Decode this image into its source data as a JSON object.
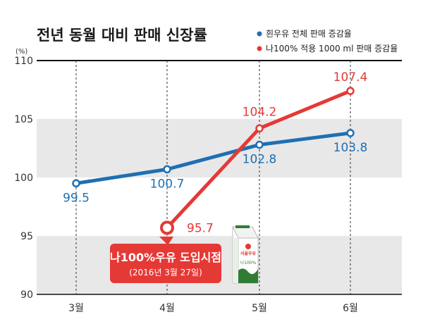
{
  "chart_data": {
    "type": "line",
    "title": "전년 동월 대비 판매 신장률",
    "unit": "(%)",
    "categories": [
      "3월",
      "4월",
      "5월",
      "6월"
    ],
    "ylim": [
      90,
      110
    ],
    "yticks": [
      110,
      105,
      100,
      95,
      90
    ],
    "grid": "horizontal bands and dashed vertical lines",
    "legend": "top-right",
    "series": [
      {
        "name": "흰우유 전체 판매 증감율",
        "color": "#1f6fb2",
        "values": [
          99.5,
          100.7,
          102.8,
          103.8
        ],
        "labels": [
          "99.5",
          "100.7",
          "102.8",
          "103.8"
        ]
      },
      {
        "name": "나100% 적용 1000 ml 판매 증감율",
        "color": "#e53935",
        "values": [
          null,
          95.7,
          104.2,
          107.4
        ],
        "labels": [
          "",
          "95.7",
          "104.2",
          "107.4"
        ]
      }
    ],
    "annotation": {
      "title": "나100%우유 도입시점",
      "subtitle": "(2016년 3월 27일)"
    },
    "product_image": {
      "brand": "서울우유",
      "text": "나100%"
    }
  }
}
